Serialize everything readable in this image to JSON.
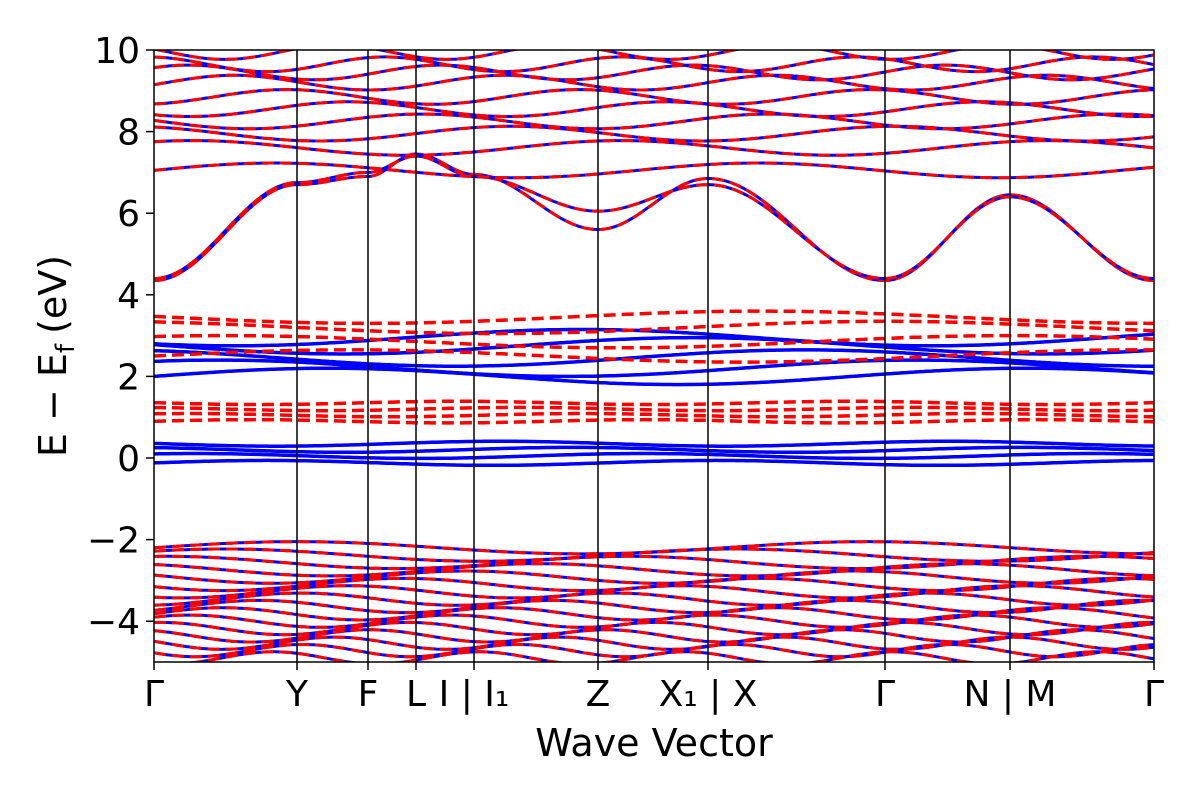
{
  "chart_data": {
    "type": "line",
    "xlabel": "Wave Vector",
    "ylabel_main": "E − E",
    "ylabel_sub": "f",
    "ylabel_unit": "(eV)",
    "ylim": [
      -5,
      10
    ],
    "yticks": [
      {
        "value": -4,
        "label": "−4"
      },
      {
        "value": -2,
        "label": "−2"
      },
      {
        "value": 0,
        "label": "0"
      },
      {
        "value": 2,
        "label": "2"
      },
      {
        "value": 4,
        "label": "4"
      },
      {
        "value": 6,
        "label": "6"
      },
      {
        "value": 8,
        "label": "8"
      },
      {
        "value": 10,
        "label": "10"
      }
    ],
    "kpath_labels": [
      {
        "label": "Γ",
        "pos": 0.0
      },
      {
        "label": "Y",
        "pos": 1.43
      },
      {
        "label": "F",
        "pos": 2.14
      },
      {
        "label": "L",
        "pos": 2.62
      },
      {
        "label": "I | I₁",
        "pos": 3.2
      },
      {
        "label": "Z",
        "pos": 4.44
      },
      {
        "label": "X₁ | X",
        "pos": 5.54
      },
      {
        "label": "Γ",
        "pos": 7.31
      },
      {
        "label": "N | M",
        "pos": 8.56
      },
      {
        "label": "Γ",
        "pos": 10.0
      }
    ],
    "xlim": [
      0,
      10
    ],
    "grid": false,
    "series": [
      {
        "style": "solid",
        "color": "#0000ff"
      },
      {
        "style": "dashed",
        "color": "#ff0000"
      }
    ]
  }
}
